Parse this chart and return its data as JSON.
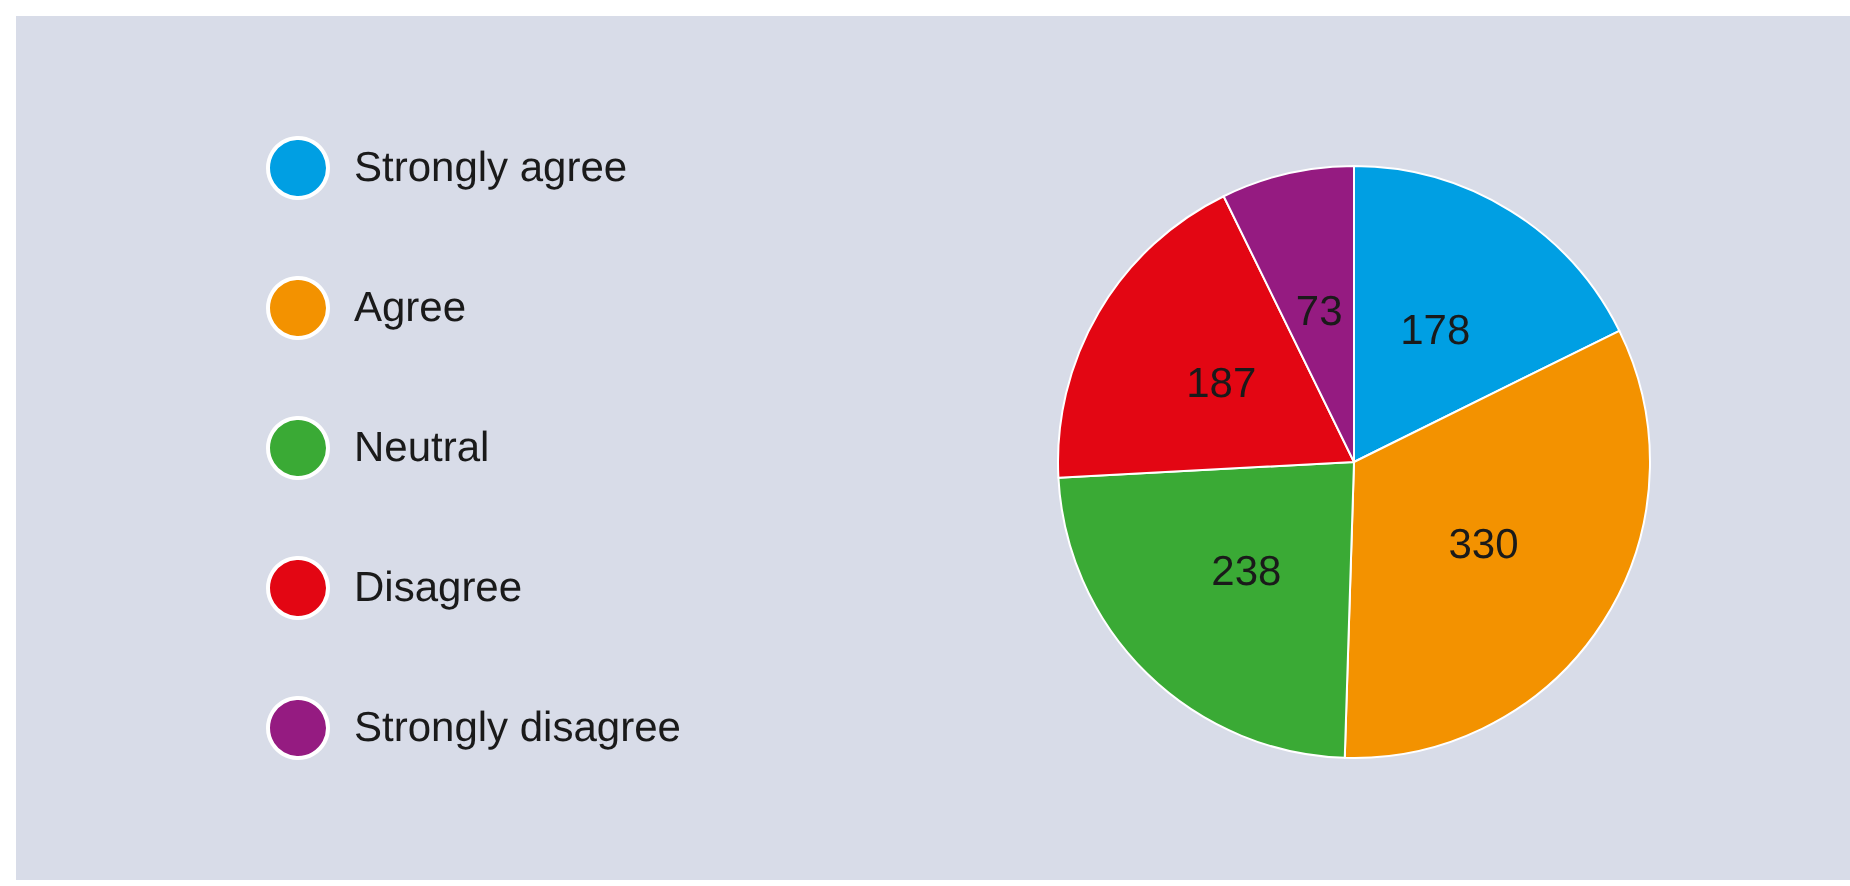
{
  "chart_data": {
    "type": "pie",
    "categories": [
      "Strongly agree",
      "Agree",
      "Neutral",
      "Disagree",
      "Strongly disagree"
    ],
    "values": [
      178,
      330,
      238,
      187,
      73
    ],
    "colors": [
      "#009fe3",
      "#f39200",
      "#3aaa35",
      "#e30613",
      "#951b81"
    ],
    "data_labels": true,
    "legend": "left"
  }
}
